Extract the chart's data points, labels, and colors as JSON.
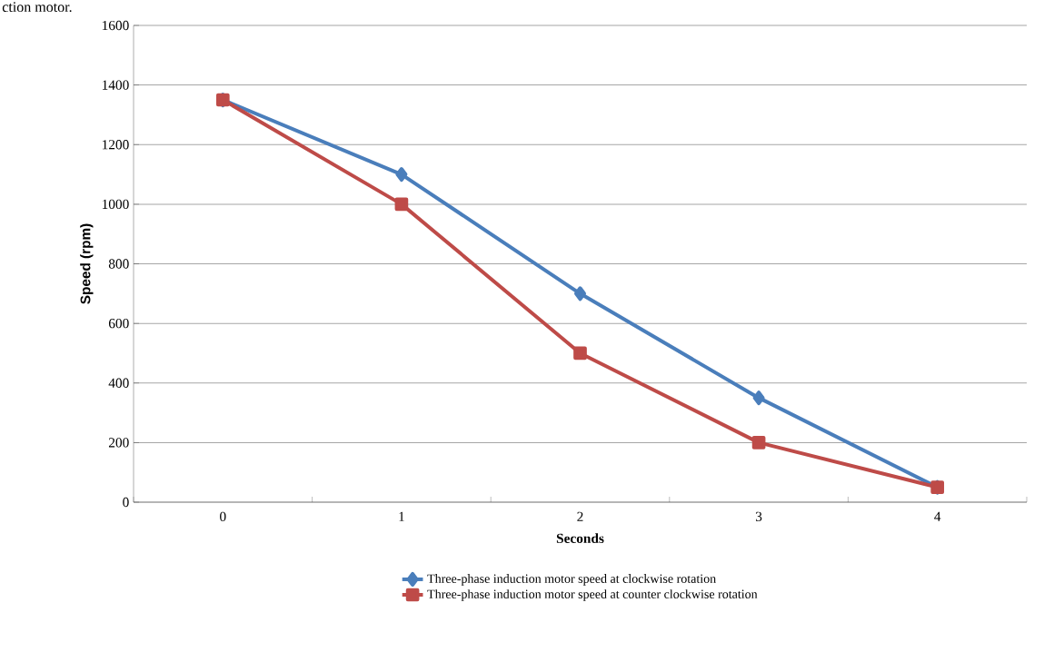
{
  "chart_data": {
    "type": "line",
    "xlabel": "Seconds",
    "ylabel": "Speed (rpm)",
    "annotations": [
      "ction motor."
    ],
    "categories": [
      "0",
      "1",
      "2",
      "3",
      "4"
    ],
    "series": [
      {
        "name": "Three-phase induction motor speed at clockwise rotation",
        "color": "#4a7ebb",
        "marker": "diamond",
        "values": [
          1350,
          1100,
          700,
          350,
          50
        ]
      },
      {
        "name": "Three-phase induction motor speed at counter clockwise rotation",
        "color": "#be4b48",
        "marker": "square",
        "values": [
          1350,
          1000,
          500,
          200,
          50
        ]
      }
    ],
    "ylim": [
      0,
      1600
    ],
    "yticks": [
      0,
      200,
      400,
      600,
      800,
      1000,
      1200,
      1400,
      1600
    ],
    "grid": "y",
    "legend": "bottom",
    "line_style": "solid"
  }
}
